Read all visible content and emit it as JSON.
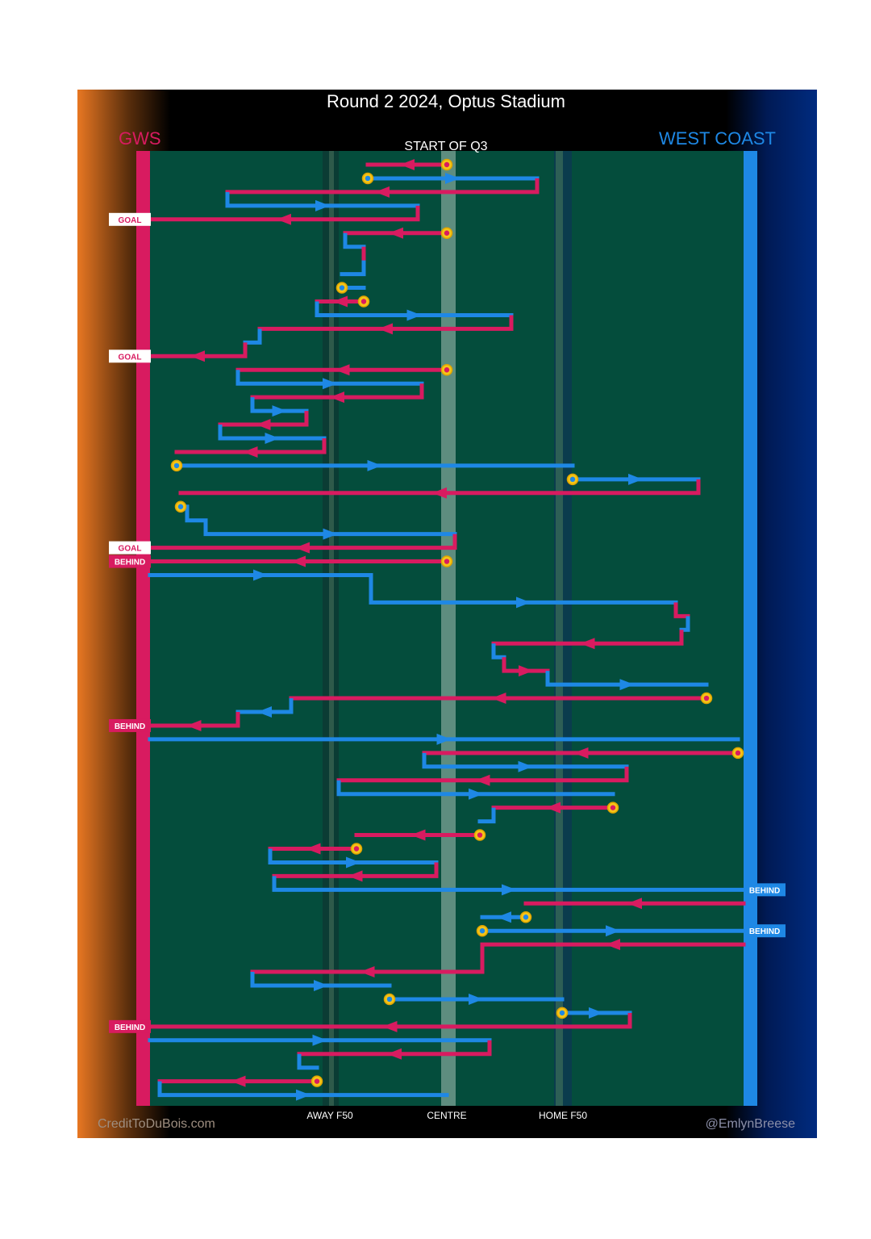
{
  "title": "Round 2 2024, Optus Stadium",
  "subtitle": "START OF Q3",
  "teams": {
    "left": {
      "name": "GWS",
      "color": "#d81b60",
      "accent": "#e87722"
    },
    "right": {
      "name": "WEST COAST",
      "color": "#1e88e5",
      "accent": "#002b7f"
    }
  },
  "zones": {
    "away_f50": "AWAY F50",
    "centre": "CENTRE",
    "home_f50": "HOME F50"
  },
  "footer": {
    "left": "CreditToDuBois.com",
    "right": "@EmlynBreese"
  },
  "chart_data": {
    "type": "line",
    "description": "Ball movement chain chart, each row is one possession segment in sequence order",
    "x_positions": [
      "GWS goal",
      "AWAY F50",
      "CENTRE",
      "HOME F50",
      "WEST COAST goal"
    ],
    "colors": {
      "GWS": "#d81b60",
      "WEST COAST": "#1e88e5",
      "stoppage": "#f5c518"
    },
    "segments": [
      {
        "row": 1,
        "team": "GWS",
        "from": 554,
        "to": 456,
        "stoppage_start": true
      },
      {
        "row": 2,
        "team": "WEST COAST",
        "from": 456,
        "to": 666,
        "stoppage_start": true
      },
      {
        "row": 3,
        "team": "GWS",
        "from": 666,
        "to": 282
      },
      {
        "row": 4,
        "team": "WEST COAST",
        "from": 282,
        "to": 518
      },
      {
        "row": 5,
        "team": "GWS",
        "from": 518,
        "to": 186,
        "outcome": "GOAL"
      },
      {
        "row": 6,
        "team": "GWS",
        "from": 554,
        "to": 428,
        "stoppage_start": true
      },
      {
        "row": 7,
        "team": "WEST COAST",
        "from": 428,
        "to": 451
      },
      {
        "row": 8,
        "team": "GWS",
        "from": 451,
        "to": 451
      },
      {
        "row": 9,
        "team": "WEST COAST",
        "from": 451,
        "to": 424
      },
      {
        "row": 10,
        "team": "WEST COAST",
        "from": 424,
        "to": 451,
        "stoppage_start": true
      },
      {
        "row": 11,
        "team": "GWS",
        "from": 451,
        "to": 393,
        "stoppage_start": true
      },
      {
        "row": 12,
        "team": "WEST COAST",
        "from": 393,
        "to": 634
      },
      {
        "row": 13,
        "team": "GWS",
        "from": 634,
        "to": 322
      },
      {
        "row": 14,
        "team": "WEST COAST",
        "from": 322,
        "to": 304
      },
      {
        "row": 15,
        "team": "GWS",
        "from": 304,
        "to": 186,
        "outcome": "GOAL"
      },
      {
        "row": 16,
        "team": "GWS",
        "from": 554,
        "to": 295,
        "stoppage_start": true
      },
      {
        "row": 17,
        "team": "WEST COAST",
        "from": 295,
        "to": 523
      },
      {
        "row": 18,
        "team": "GWS",
        "from": 523,
        "to": 313
      },
      {
        "row": 19,
        "team": "WEST COAST",
        "from": 313,
        "to": 380
      },
      {
        "row": 20,
        "team": "GWS",
        "from": 380,
        "to": 273
      },
      {
        "row": 21,
        "team": "WEST COAST",
        "from": 273,
        "to": 402
      },
      {
        "row": 22,
        "team": "GWS",
        "from": 402,
        "to": 219
      },
      {
        "row": 23,
        "team": "WEST COAST",
        "from": 219,
        "to": 710,
        "stoppage_start": true
      },
      {
        "row": 24,
        "team": "WEST COAST",
        "from": 710,
        "to": 866,
        "stoppage_start": true
      },
      {
        "row": 25,
        "team": "GWS",
        "from": 866,
        "to": 224
      },
      {
        "row": 26,
        "team": "WEST COAST",
        "from": 224,
        "to": 232,
        "stoppage_start": true
      },
      {
        "row": 27,
        "team": "WEST COAST",
        "from": 232,
        "to": 255
      },
      {
        "row": 28,
        "team": "WEST COAST",
        "from": 255,
        "to": 564
      },
      {
        "row": 29,
        "team": "GWS",
        "from": 564,
        "to": 186,
        "outcome": "GOAL"
      },
      {
        "row": 30,
        "team": "GWS",
        "from": 554,
        "to": 186,
        "stoppage_start": true,
        "outcome": "BEHIND"
      },
      {
        "row": 31,
        "team": "WEST COAST",
        "from": 186,
        "to": 460
      },
      {
        "row": 33,
        "team": "WEST COAST",
        "from": 460,
        "to": 838
      },
      {
        "row": 34,
        "team": "GWS",
        "from": 838,
        "to": 853
      },
      {
        "row": 35,
        "team": "WEST COAST",
        "from": 853,
        "to": 845
      },
      {
        "row": 36,
        "team": "GWS",
        "from": 845,
        "to": 612
      },
      {
        "row": 37,
        "team": "WEST COAST",
        "from": 612,
        "to": 625
      },
      {
        "row": 38,
        "team": "GWS",
        "from": 625,
        "to": 679
      },
      {
        "row": 39,
        "team": "WEST COAST",
        "from": 679,
        "to": 876
      },
      {
        "row": 40,
        "team": "GWS",
        "from": 876,
        "to": 361,
        "stoppage_start": true
      },
      {
        "row": 41,
        "team": "WEST COAST",
        "from": 361,
        "to": 295
      },
      {
        "row": 42,
        "team": "GWS",
        "from": 295,
        "to": 186,
        "outcome": "BEHIND"
      },
      {
        "row": 43,
        "team": "WEST COAST",
        "from": 186,
        "to": 915
      },
      {
        "row": 44,
        "team": "GWS",
        "from": 915,
        "to": 526,
        "stoppage_start": true
      },
      {
        "row": 45,
        "team": "WEST COAST",
        "from": 526,
        "to": 777
      },
      {
        "row": 46,
        "team": "GWS",
        "from": 777,
        "to": 420
      },
      {
        "row": 47,
        "team": "WEST COAST",
        "from": 420,
        "to": 760
      },
      {
        "row": 48,
        "team": "GWS",
        "from": 760,
        "to": 612,
        "stoppage_start": true
      },
      {
        "row": 49,
        "team": "WEST COAST",
        "from": 612,
        "to": 595
      },
      {
        "row": 50,
        "team": "GWS",
        "from": 595,
        "to": 442,
        "stoppage_start": true
      },
      {
        "row": 51,
        "team": "GWS",
        "from": 442,
        "to": 335,
        "stoppage_start": true
      },
      {
        "row": 52,
        "team": "WEST COAST",
        "from": 335,
        "to": 541
      },
      {
        "row": 53,
        "team": "GWS",
        "from": 541,
        "to": 340
      },
      {
        "row": 54,
        "team": "WEST COAST",
        "from": 340,
        "to": 922,
        "outcome": "BEHIND"
      },
      {
        "row": 55,
        "team": "GWS",
        "from": 922,
        "to": 652
      },
      {
        "row": 56,
        "team": "WEST COAST",
        "from": 652,
        "to": 598,
        "stoppage_start": true
      },
      {
        "row": 57,
        "team": "WEST COAST",
        "from": 598,
        "to": 922,
        "stoppage_start": true,
        "outcome": "BEHIND"
      },
      {
        "row": 58,
        "team": "GWS",
        "from": 922,
        "to": 598
      },
      {
        "row": 60,
        "team": "GWS",
        "from": 598,
        "to": 313
      },
      {
        "row": 61,
        "team": "WEST COAST",
        "from": 313,
        "to": 483
      },
      {
        "row": 62,
        "team": "WEST COAST",
        "from": 483,
        "to": 697,
        "stoppage_start": true
      },
      {
        "row": 63,
        "team": "WEST COAST",
        "from": 697,
        "to": 781,
        "stoppage_start": true
      },
      {
        "row": 64,
        "team": "GWS",
        "from": 781,
        "to": 186,
        "outcome": "BEHIND"
      },
      {
        "row": 65,
        "team": "WEST COAST",
        "from": 186,
        "to": 607
      },
      {
        "row": 66,
        "team": "GWS",
        "from": 607,
        "to": 371
      },
      {
        "row": 67,
        "team": "WEST COAST",
        "from": 371,
        "to": 393
      },
      {
        "row": 68,
        "team": "GWS",
        "from": 393,
        "to": 198,
        "stoppage_start": true
      },
      {
        "row": 69,
        "team": "WEST COAST",
        "from": 198,
        "to": 554
      }
    ]
  }
}
